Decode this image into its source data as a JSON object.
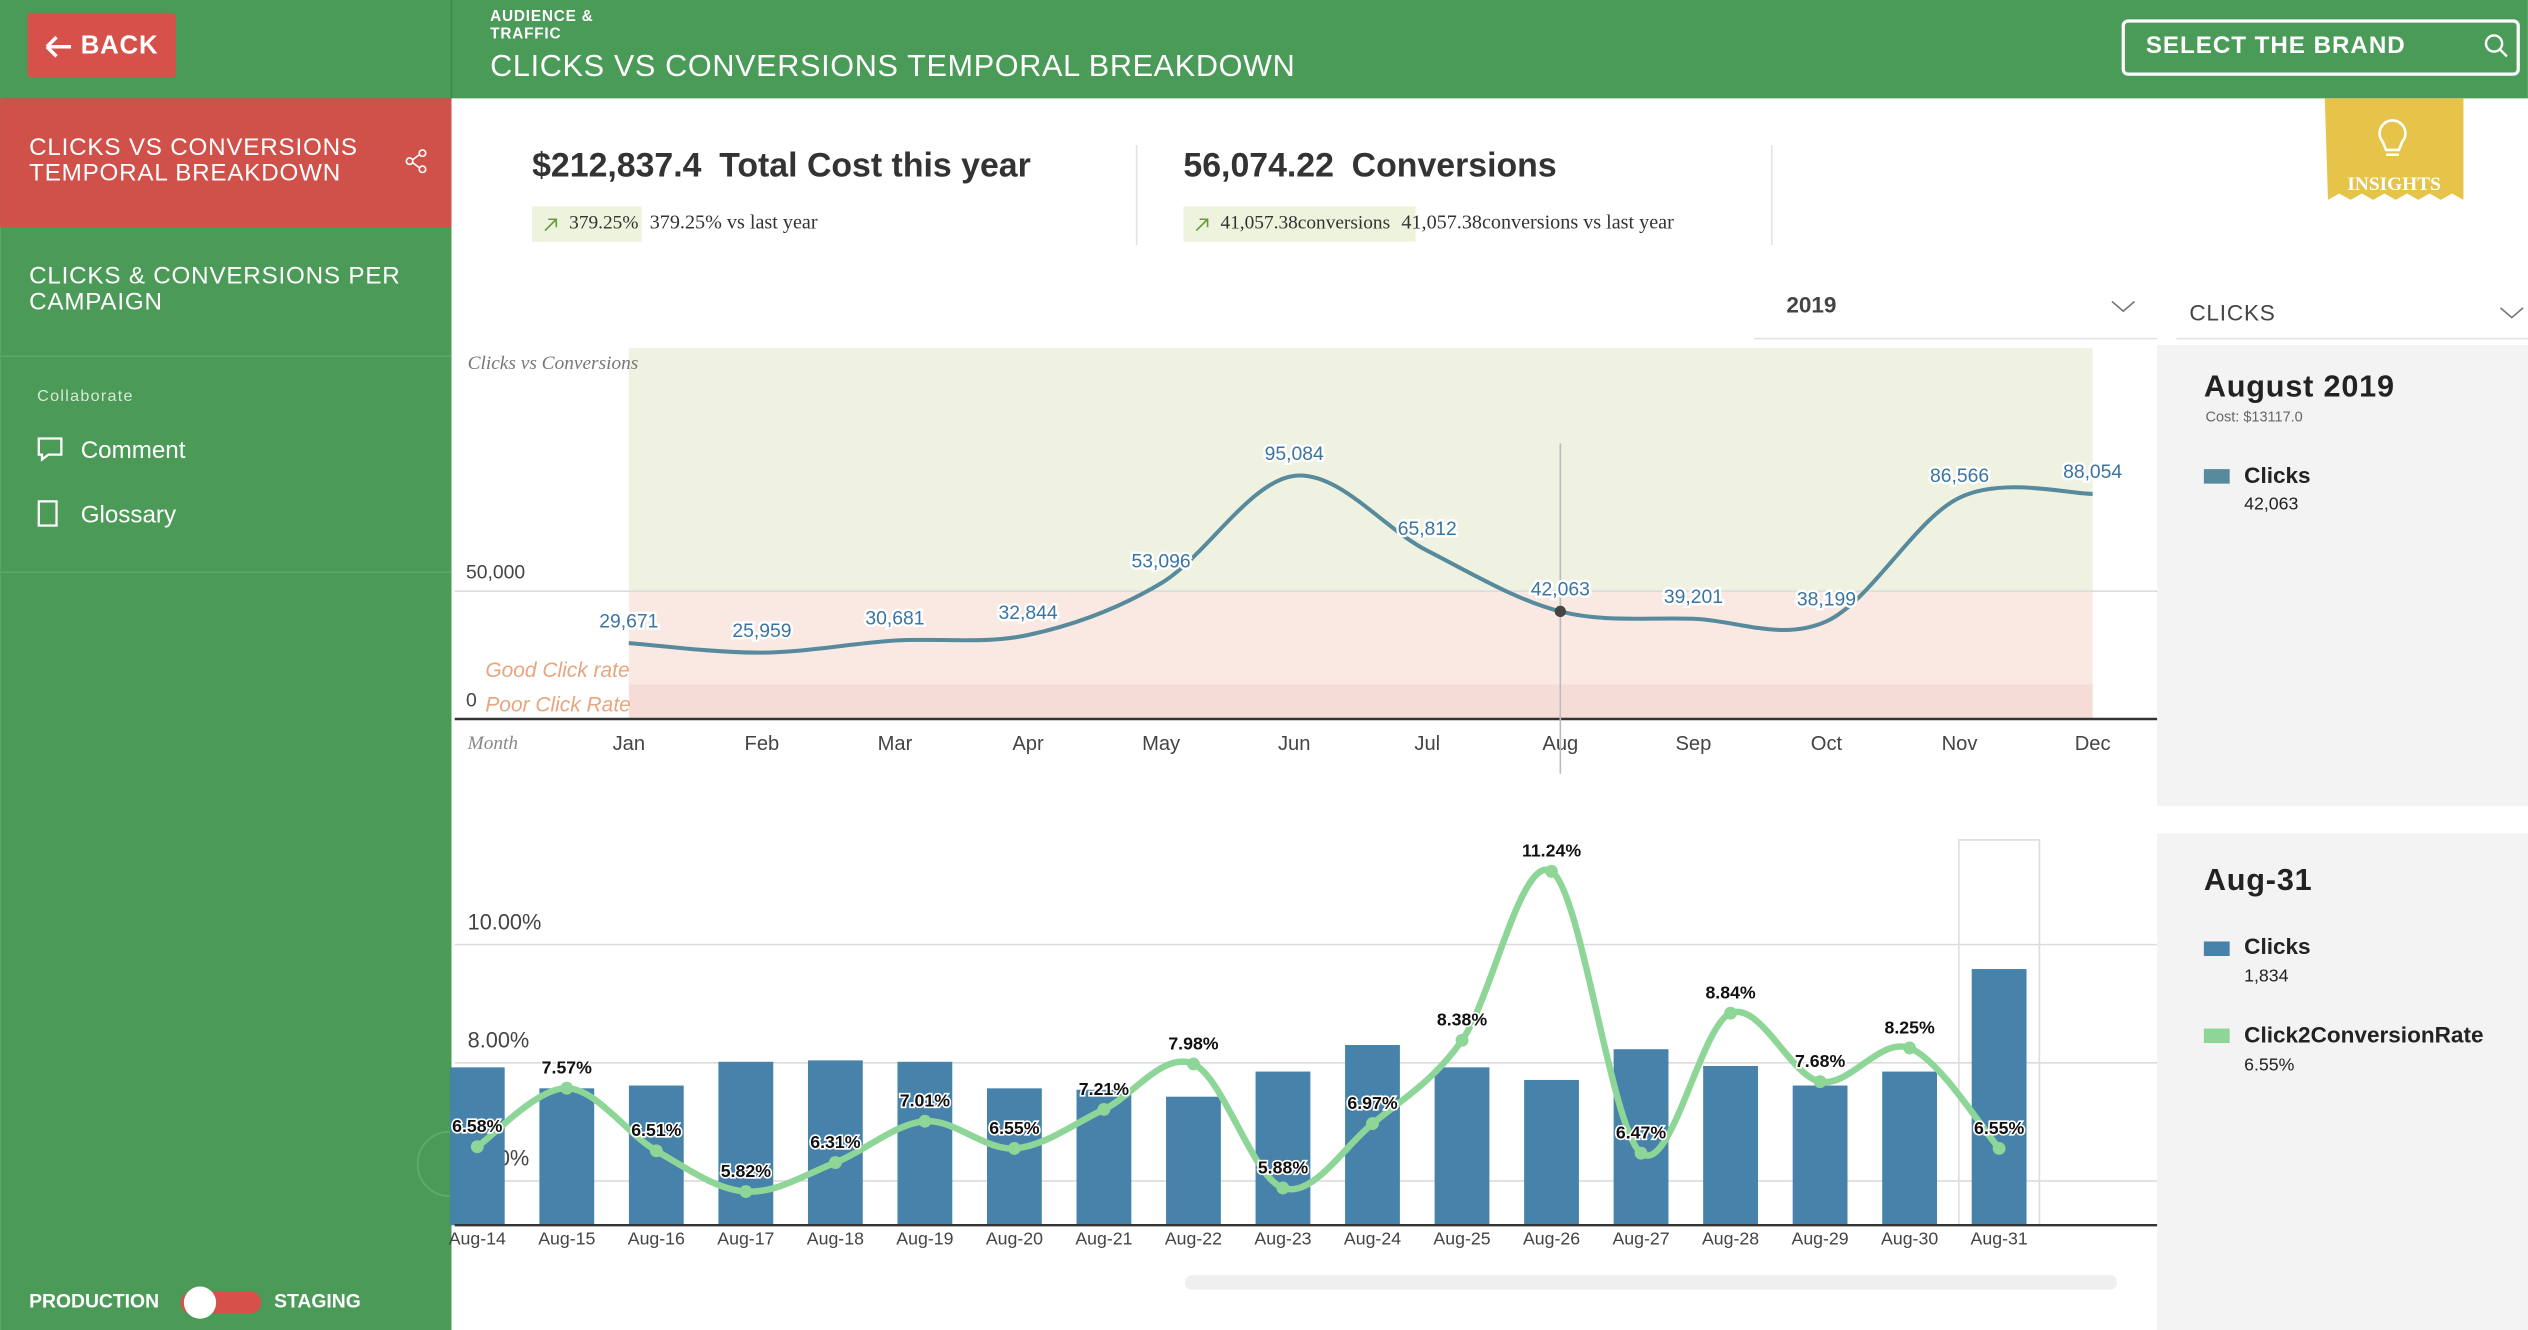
{
  "back": "BACK",
  "header": {
    "section": "AUDIENCE & TRAFFIC",
    "title": "CLICKS VS CONVERSIONS TEMPORAL BREAKDOWN",
    "brand_select": "SELECT THE BRAND"
  },
  "sidebar": {
    "nav": [
      "CLICKS VS CONVERSIONS TEMPORAL BREAKDOWN",
      "CLICKS & CONVERSIONS PER CAMPAIGN"
    ],
    "collaborate": "Collaborate",
    "links": [
      "Comment",
      "Glossary"
    ],
    "toggle": {
      "left": "PRODUCTION",
      "right": "STAGING"
    }
  },
  "kpis": [
    {
      "value": "$212,837.4",
      "label": "Total Cost this year",
      "change": "379.25%",
      "comparison": "379.25% vs last year"
    },
    {
      "value": "56,074.22",
      "label": "Conversions",
      "change": "41,057.38conversions",
      "comparison": "41,057.38conversions vs last year"
    }
  ],
  "insights": "INSIGHTS",
  "filters": {
    "year": "2019",
    "metric": "CLICKS"
  },
  "tooltips": [
    {
      "title": "August 2019",
      "cost": "Cost: $13117.0"
    },
    {
      "title": "Aug-31",
      "clicks": "1,834"
    }
  ],
  "chart_data": [
    {
      "type": "line",
      "title": "Clicks vs Conversions",
      "x_label": "Month",
      "categories": [
        "Jan",
        "Feb",
        "Mar",
        "Apr",
        "May",
        "Jun",
        "Jul",
        "Aug",
        "Sep",
        "Oct",
        "Nov",
        "Dec"
      ],
      "series": [
        {
          "name": "Clicks",
          "color": "#578a9c",
          "values": [
            29671,
            25959,
            30681,
            32844,
            53096,
            95084,
            65812,
            42063,
            39201,
            38199,
            86566,
            88054
          ],
          "value_labels": [
            "29,671",
            "25,959",
            "30,681",
            "32,844",
            "53,096",
            "95,084",
            "65,812",
            "42,063",
            "39,201",
            "38,199",
            "86,566",
            "88,054"
          ]
        }
      ],
      "ylim": [
        0,
        145000
      ],
      "yticks": [
        0,
        {
          "value": 50000,
          "label": "50,000"
        }
      ],
      "grid": true,
      "bands": [
        {
          "from": 50000,
          "to": 145000,
          "color": "#eff2e0"
        },
        {
          "label": "Good Click rate",
          "from": 13500,
          "to": 50000,
          "color": "#f9e9e2"
        },
        {
          "label": "Poor Click Rate",
          "from": 0,
          "to": 13500,
          "color": "#f5dcd6"
        }
      ]
    },
    {
      "type": "combo",
      "categories": [
        "Aug-14",
        "Aug-15",
        "Aug-16",
        "Aug-17",
        "Aug-18",
        "Aug-19",
        "Aug-20",
        "Aug-21",
        "Aug-22",
        "Aug-23",
        "Aug-24",
        "Aug-25",
        "Aug-26",
        "Aug-27",
        "Aug-28",
        "Aug-29",
        "Aug-30",
        "Aug-31"
      ],
      "series": [
        {
          "name": "Clicks",
          "type": "bar",
          "axis": "y2",
          "color": "#4682a9",
          "values": [
            1130,
            980,
            1000,
            1170,
            1180,
            1170,
            980,
            970,
            920,
            1100,
            1290,
            1130,
            1040,
            1260,
            1140,
            1000,
            1100,
            1834
          ]
        },
        {
          "name": "Click2ConversionRate",
          "type": "line",
          "color": "#8ed697",
          "values": [
            6.58,
            7.57,
            6.51,
            5.82,
            6.31,
            7.01,
            6.55,
            7.21,
            7.98,
            5.88,
            6.97,
            8.38,
            11.24,
            6.47,
            8.84,
            7.68,
            8.25,
            6.55
          ],
          "value_labels": [
            "6.58%",
            "7.57%",
            "6.51%",
            "5.82%",
            "6.31%",
            "7.01%",
            "6.55%",
            "7.21%",
            "7.98%",
            "5.88%",
            "6.97%",
            "8.38%",
            "11.24%",
            "6.47%",
            "8.84%",
            "7.68%",
            "8.25%",
            "6.55%"
          ]
        }
      ],
      "ylim": [
        5.25,
        11.8
      ],
      "yticks": [
        {
          "value": 6,
          "label": "6.00%"
        },
        {
          "value": 8,
          "label": "8.00%"
        },
        {
          "value": 10,
          "label": "10.00%"
        }
      ],
      "y2lim": [
        0,
        2770
      ],
      "grid": true
    }
  ]
}
